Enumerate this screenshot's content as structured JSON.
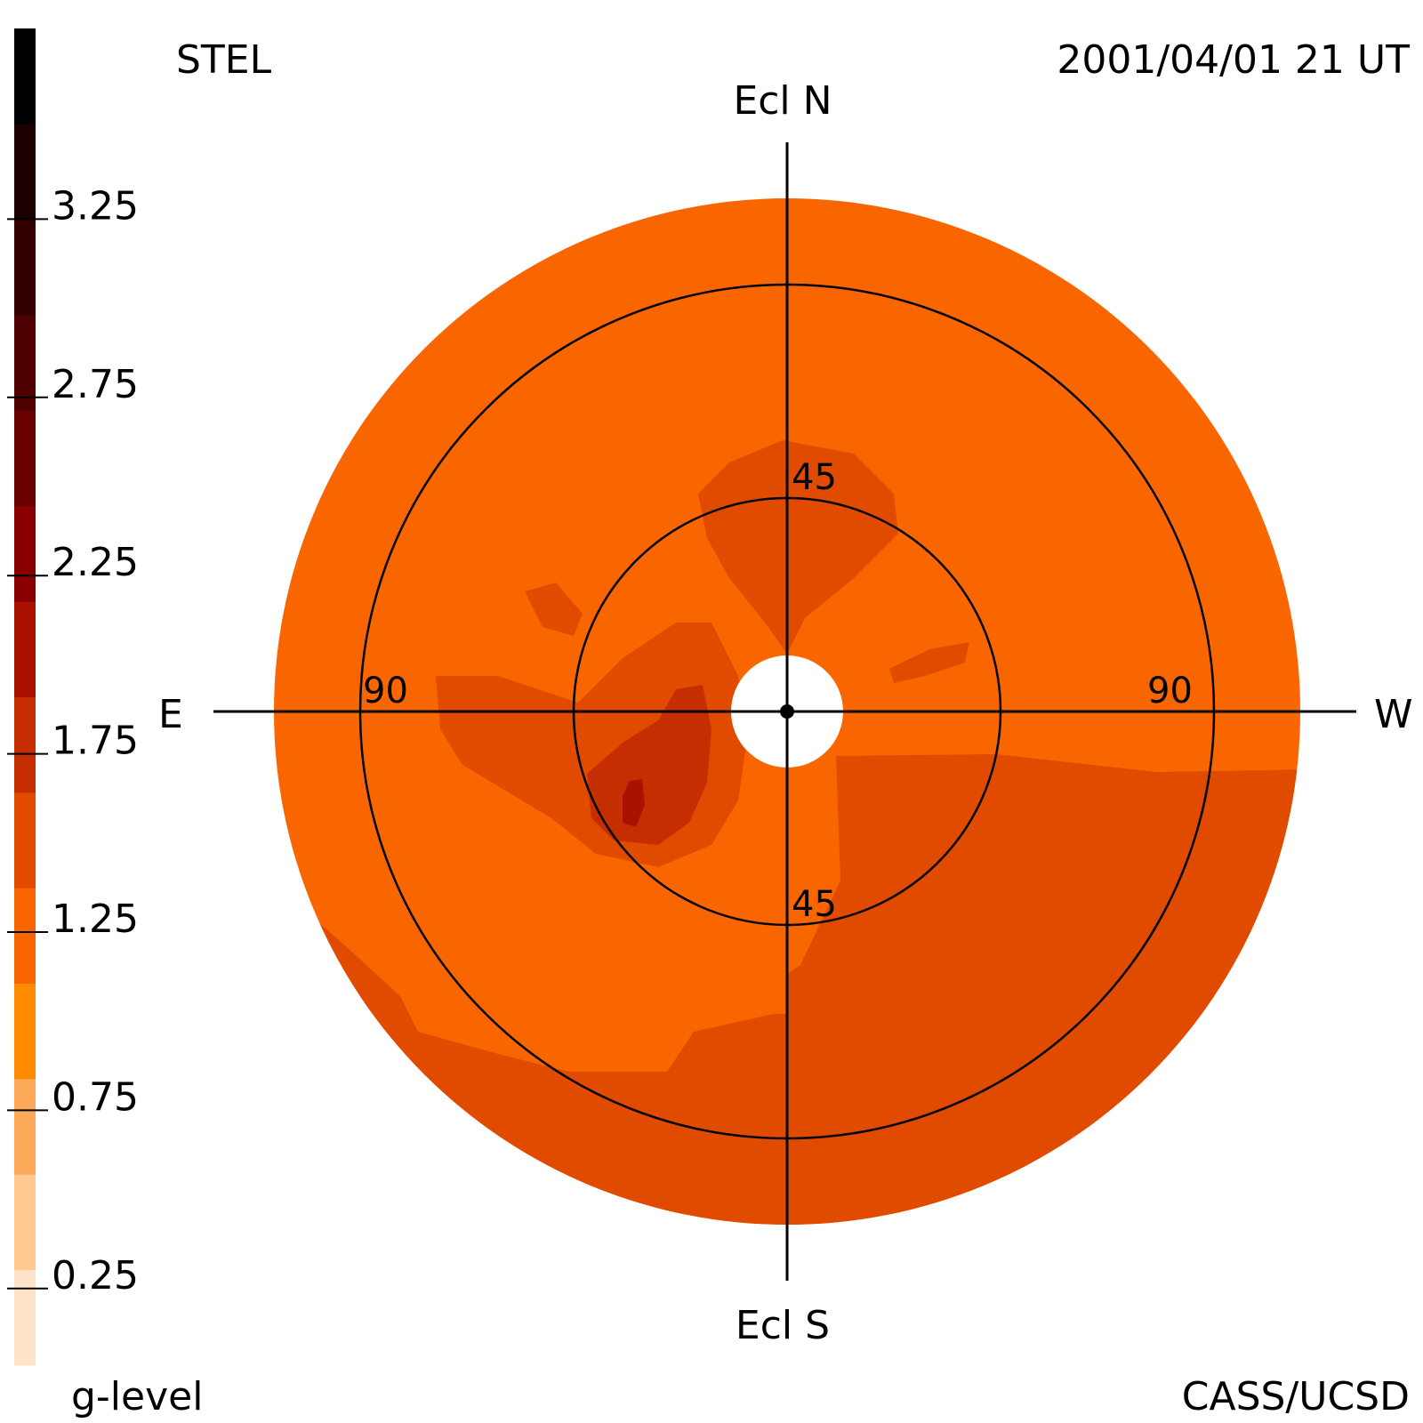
{
  "chart_data": {
    "type": "heatmap",
    "subtype": "polar sky map",
    "instrument_label": "STEL",
    "timestamp": "2001/04/01 21 UT",
    "credit": "CASS/UCSD",
    "colorbar": {
      "label": "g-level",
      "tick_labels": [
        "3.25",
        "2.75",
        "2.25",
        "1.75",
        "1.25",
        "0.75",
        "0.25"
      ],
      "tick_values": [
        3.25,
        2.75,
        2.25,
        1.75,
        1.25,
        0.75,
        0.25
      ],
      "range": [
        0,
        3.75
      ],
      "band_colors": [
        "#FFE3C8",
        "#FFC98F",
        "#FFA95A",
        "#FF8A00",
        "#F96600",
        "#E14B00",
        "#C52E00",
        "#A91200",
        "#8A0000",
        "#6B0000",
        "#4F0000",
        "#340000",
        "#1A0000",
        "#000000"
      ]
    },
    "directions": {
      "north": "Ecl N",
      "south": "Ecl S",
      "east": "E",
      "west": "W"
    },
    "rings": [
      {
        "value": 45,
        "labels": [
          "45",
          "45"
        ]
      },
      {
        "value": 90,
        "labels": [
          "90",
          "90"
        ]
      }
    ],
    "regions": [
      {
        "level": 1.0,
        "area": "background disk"
      },
      {
        "level": 1.25,
        "area": "southwest (lower-right) sector beyond 45°"
      },
      {
        "level": 1.25,
        "area": "southeast outer edge band"
      },
      {
        "level": 1.25,
        "area": "northern lobe around 45° north"
      },
      {
        "level": 1.25,
        "area": "eastern inner patch near 45° east"
      },
      {
        "level": 1.5,
        "area": "inner southeast blob"
      },
      {
        "level": 1.75,
        "area": "core spot southeast of center"
      }
    ]
  }
}
